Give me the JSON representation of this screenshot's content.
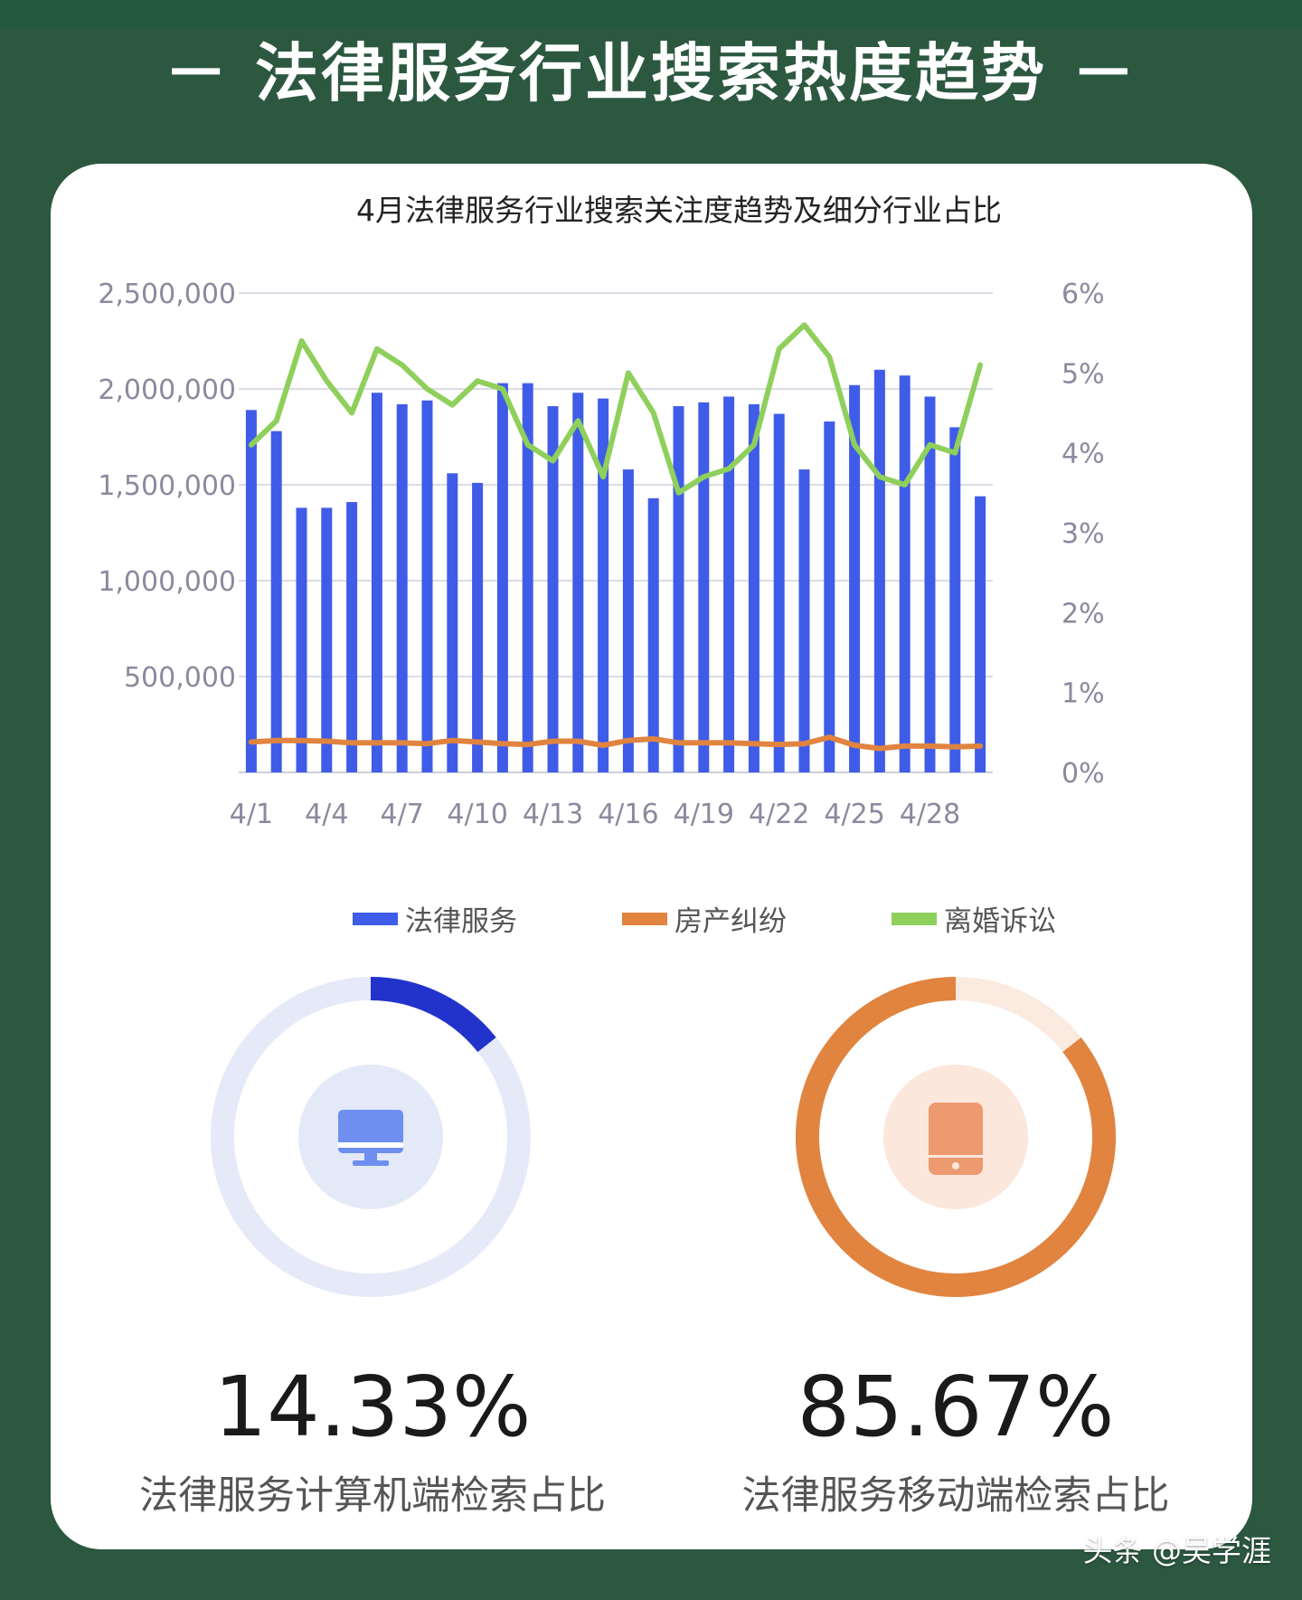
{
  "page": {
    "title": "－ 法律服务行业搜索热度趋势 －",
    "watermark": "头条 @吴学涯"
  },
  "chart_data": [
    {
      "type": "bar",
      "title": "4月法律服务行业搜索关注度趋势及细分行业占比",
      "categories": [
        "4/1",
        "4/2",
        "4/3",
        "4/4",
        "4/5",
        "4/6",
        "4/7",
        "4/8",
        "4/9",
        "4/10",
        "4/11",
        "4/12",
        "4/13",
        "4/14",
        "4/15",
        "4/16",
        "4/17",
        "4/18",
        "4/19",
        "4/20",
        "4/21",
        "4/22",
        "4/23",
        "4/24",
        "4/25",
        "4/26",
        "4/27",
        "4/28",
        "4/29",
        "4/30"
      ],
      "x_tick_labels": [
        "4/1",
        "4/4",
        "4/7",
        "4/10",
        "4/13",
        "4/16",
        "4/19",
        "4/22",
        "4/25",
        "4/28"
      ],
      "y_left": {
        "ticks": [
          "500,000",
          "1,000,000",
          "1,500,000",
          "2,000,000",
          "2,500,000"
        ],
        "range": [
          0,
          2500000
        ]
      },
      "y_right": {
        "ticks": [
          "0%",
          "1%",
          "2%",
          "3%",
          "4%",
          "5%",
          "6%"
        ],
        "range": [
          0,
          6
        ]
      },
      "grid": true,
      "legend_position": "bottom",
      "series": [
        {
          "name": "法律服务",
          "type": "bar",
          "axis": "left",
          "color": "#3f5ce8",
          "values": [
            1890000,
            1780000,
            1380000,
            1380000,
            1410000,
            1980000,
            1920000,
            1940000,
            1560000,
            1510000,
            2030000,
            2030000,
            1910000,
            1980000,
            1950000,
            1580000,
            1430000,
            1910000,
            1930000,
            1960000,
            1920000,
            1870000,
            1580000,
            1830000,
            2020000,
            2100000,
            2070000,
            1960000,
            1800000,
            1440000
          ]
        },
        {
          "name": "房产纠纷",
          "type": "line",
          "axis": "right",
          "color": "#e08440",
          "values": [
            0.38,
            0.4,
            0.4,
            0.39,
            0.37,
            0.37,
            0.37,
            0.36,
            0.4,
            0.38,
            0.36,
            0.35,
            0.39,
            0.39,
            0.34,
            0.4,
            0.42,
            0.37,
            0.37,
            0.37,
            0.36,
            0.35,
            0.36,
            0.44,
            0.34,
            0.3,
            0.33,
            0.33,
            0.32,
            0.33
          ]
        },
        {
          "name": "离婚诉讼",
          "type": "line",
          "axis": "right",
          "color": "#8fcf5c",
          "values": [
            4.1,
            4.4,
            5.4,
            4.9,
            4.5,
            5.3,
            5.1,
            4.8,
            4.6,
            4.9,
            4.8,
            4.1,
            3.9,
            4.4,
            3.7,
            5.0,
            4.5,
            3.5,
            3.7,
            3.8,
            4.1,
            5.3,
            5.6,
            5.2,
            4.1,
            3.7,
            3.6,
            4.1,
            4.0,
            5.1
          ]
        }
      ]
    },
    {
      "type": "pie",
      "subtype": "donut",
      "value": 14.33,
      "value_label": "14.33%",
      "label": "法律服务计算机端检索占比",
      "icon": "desktop-monitor-icon",
      "colors": {
        "fill": "#2233cc",
        "track": "#e6eaf8",
        "inner": "#e4e9f8",
        "icon": "#6e8ff0"
      }
    },
    {
      "type": "pie",
      "subtype": "donut",
      "value": 85.67,
      "value_label": "85.67%",
      "label": "法律服务移动端检索占比",
      "icon": "mobile-phone-icon",
      "colors": {
        "fill": "#e08440",
        "track": "#fbeae0",
        "inner": "#fbe7dc",
        "icon": "#ee9a70"
      }
    }
  ]
}
